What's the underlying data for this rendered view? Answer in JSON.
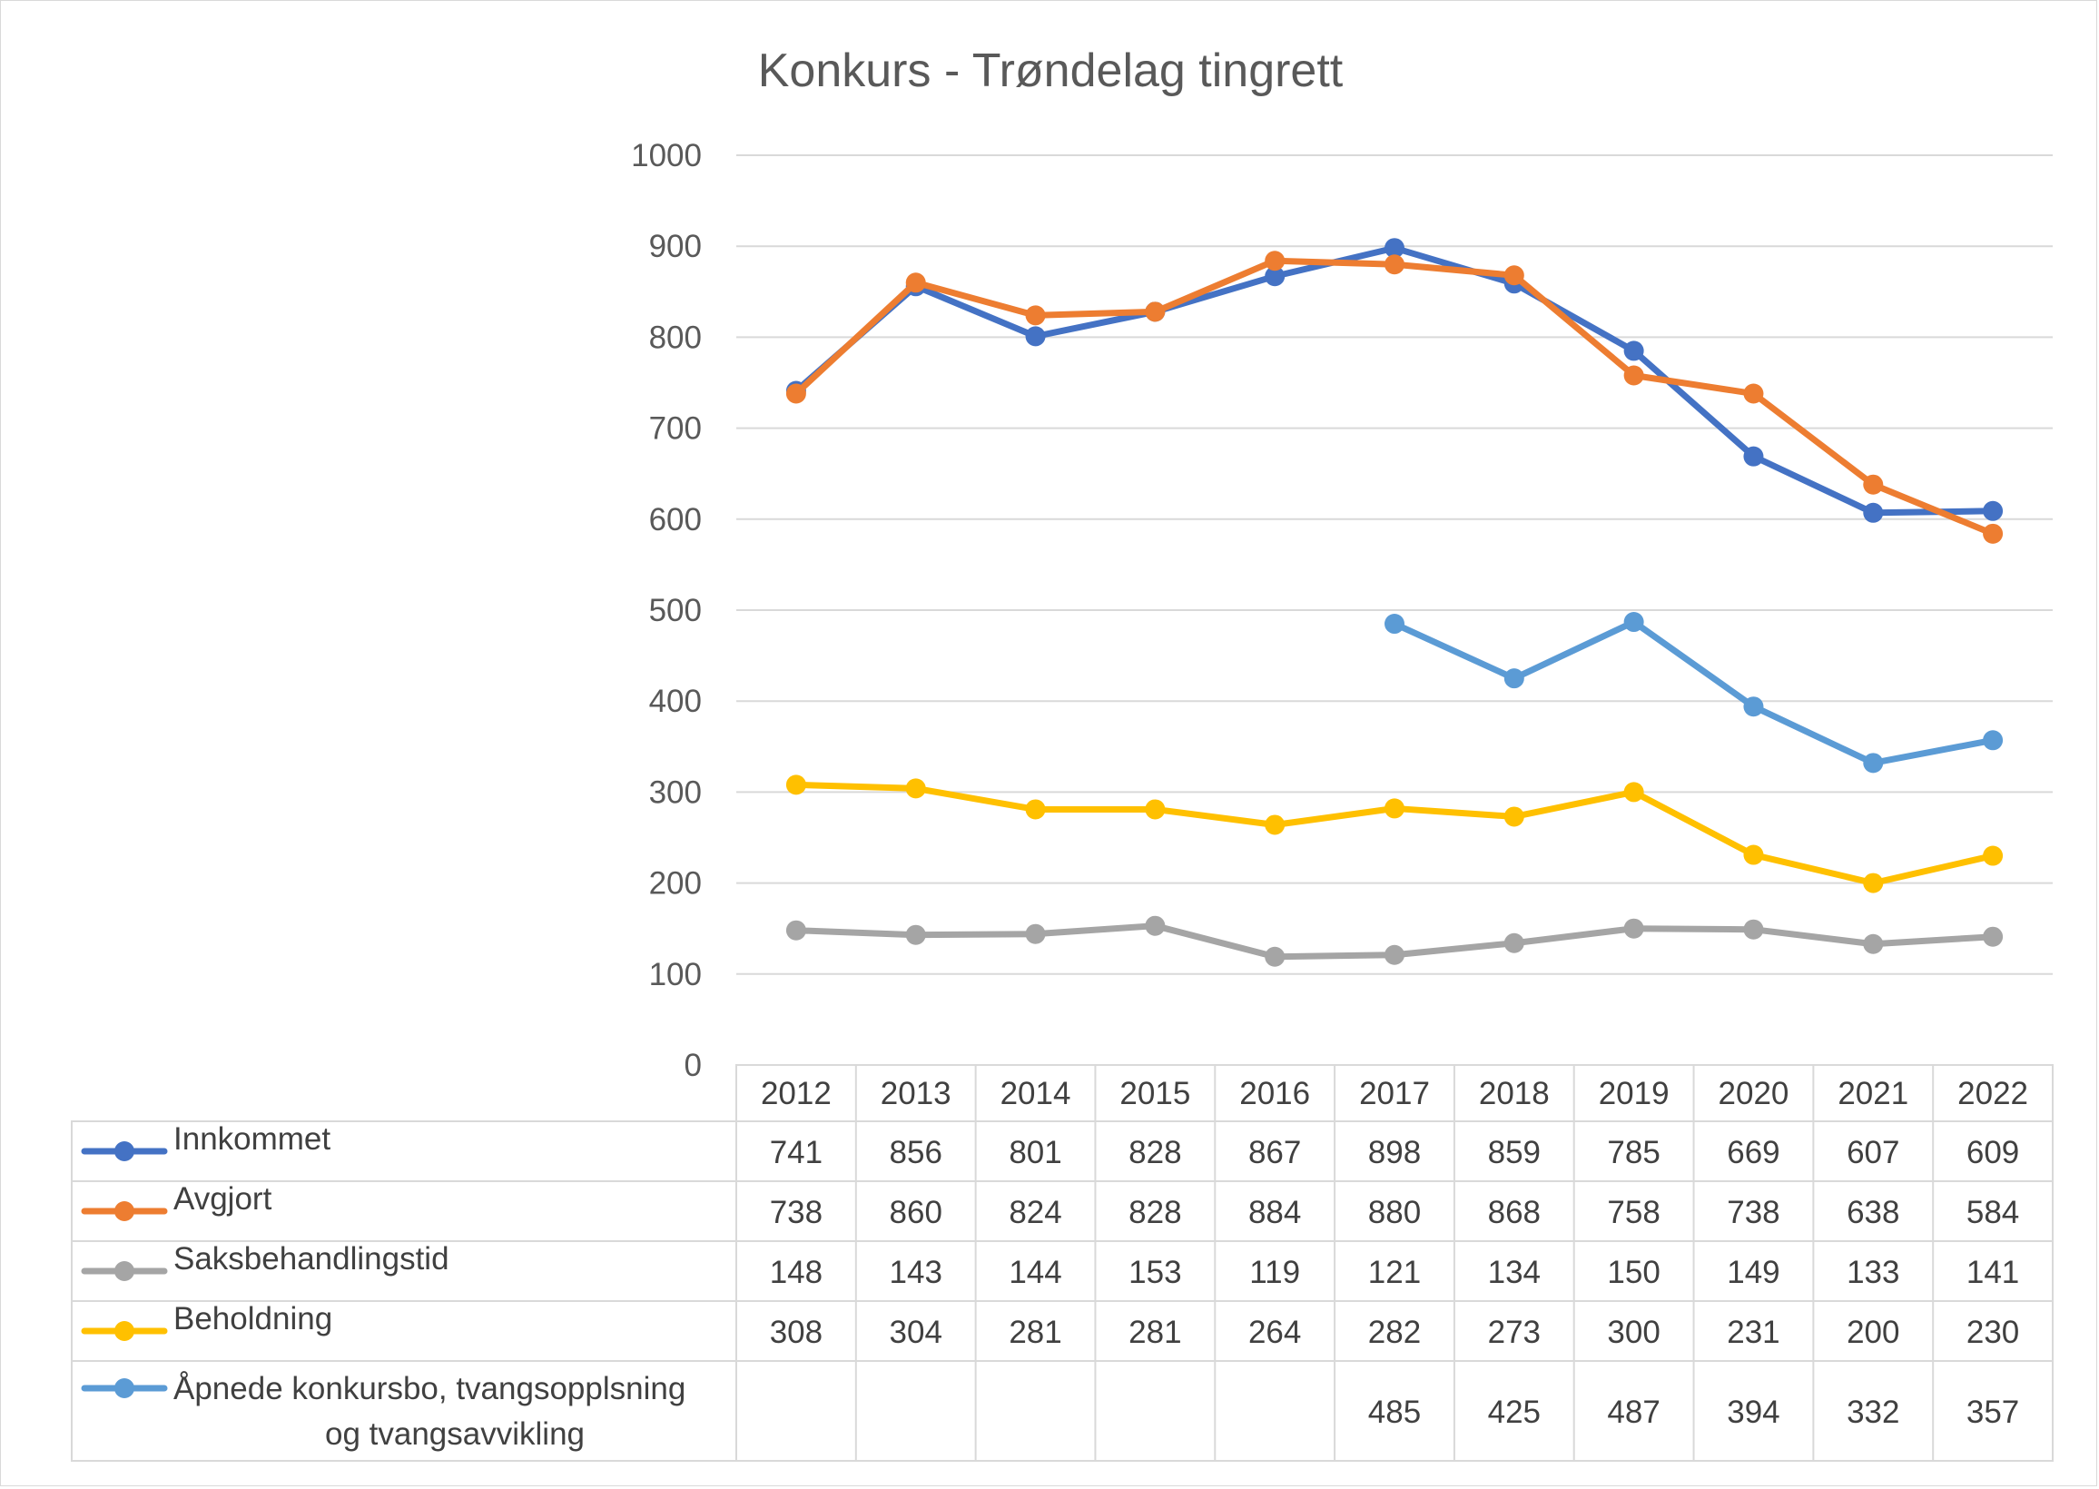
{
  "chart_data": {
    "type": "line",
    "title": "Konkurs - Trøndelag tingrett",
    "categories": [
      "2012",
      "2013",
      "2014",
      "2015",
      "2016",
      "2017",
      "2018",
      "2019",
      "2020",
      "2021",
      "2022"
    ],
    "ylim": [
      0,
      1000
    ],
    "yticks": [
      "0",
      "100",
      "200",
      "300",
      "400",
      "500",
      "600",
      "700",
      "800",
      "900",
      "1000"
    ],
    "grid": true,
    "legend": "data table below chart",
    "series": [
      {
        "name": "Innkommet",
        "color": "#4472c4",
        "values": [
          741,
          856,
          801,
          828,
          867,
          898,
          859,
          785,
          669,
          607,
          609
        ]
      },
      {
        "name": "Avgjort",
        "color": "#ed7d31",
        "values": [
          738,
          860,
          824,
          828,
          884,
          880,
          868,
          758,
          738,
          638,
          584
        ]
      },
      {
        "name": "Saksbehandlingstid",
        "color": "#a5a5a5",
        "values": [
          148,
          143,
          144,
          153,
          119,
          121,
          134,
          150,
          149,
          133,
          141
        ]
      },
      {
        "name": "Beholdning",
        "color": "#ffc000",
        "values": [
          308,
          304,
          281,
          281,
          264,
          282,
          273,
          300,
          231,
          200,
          230
        ]
      },
      {
        "name": "Åpnede konkursbo, tvangsopplsning og tvangsavvikling",
        "name_lines": [
          "Åpnede konkursbo, tvangsopplsning",
          "og tvangsavvikling"
        ],
        "color": "#5b9bd5",
        "values": [
          null,
          null,
          null,
          null,
          null,
          485,
          425,
          487,
          394,
          332,
          357
        ]
      }
    ]
  }
}
